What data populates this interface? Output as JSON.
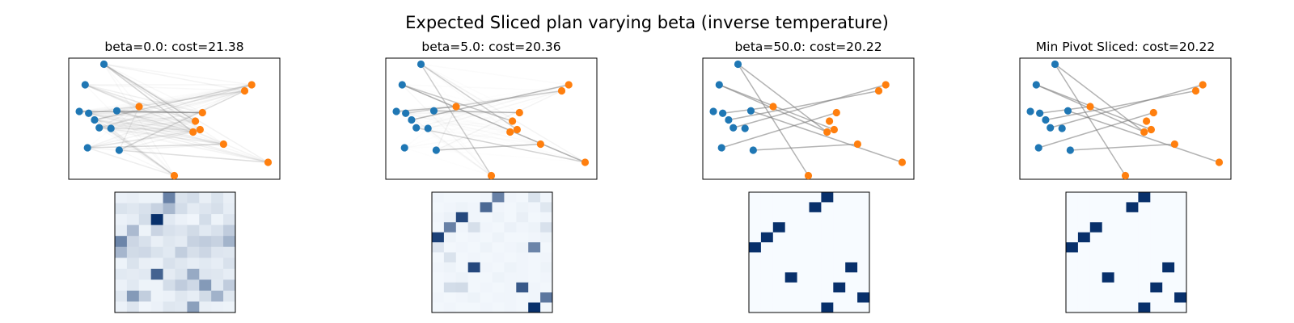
{
  "figure": {
    "title": "Expected Sliced plan varying beta (inverse temperature)"
  },
  "colors": {
    "source": "#1f77b4",
    "target": "#ff7f0e",
    "link": "#808080",
    "matrix_low": "#f7fbff",
    "matrix_high": "#08306b"
  },
  "chart_data": [
    {
      "type": "scatter",
      "title": "beta=0.0: cost=21.38",
      "beta": 0.0,
      "cost": 21.38,
      "source_points": [
        [
          1.5,
          9.5
        ],
        [
          0.7,
          7.8
        ],
        [
          0.45,
          5.6
        ],
        [
          0.85,
          5.45
        ],
        [
          1.1,
          4.9
        ],
        [
          1.3,
          4.25
        ],
        [
          1.8,
          4.2
        ],
        [
          2.05,
          5.65
        ],
        [
          0.8,
          2.6
        ],
        [
          2.15,
          2.4
        ]
      ],
      "target_points": [
        [
          7.8,
          7.8
        ],
        [
          7.5,
          7.3
        ],
        [
          3.0,
          6.0
        ],
        [
          5.7,
          5.5
        ],
        [
          5.4,
          4.8
        ],
        [
          5.6,
          4.1
        ],
        [
          5.3,
          3.9
        ],
        [
          6.6,
          2.9
        ],
        [
          8.5,
          1.4
        ],
        [
          4.5,
          0.3
        ]
      ],
      "plan": [
        [
          0.05,
          0.06,
          0.04,
          0.04,
          0.6,
          0.12,
          0.15,
          0.06,
          0.12,
          0.06
        ],
        [
          0.12,
          0.1,
          0.13,
          0.2,
          0.33,
          0.15,
          0.08,
          0.11,
          0.14,
          0.07
        ],
        [
          0.05,
          0.07,
          0.15,
          1.0,
          0.09,
          0.05,
          0.03,
          0.15,
          0.04,
          0.11
        ],
        [
          0.07,
          0.32,
          0.04,
          0.19,
          0.13,
          0.11,
          0.16,
          0.09,
          0.13,
          0.23
        ],
        [
          0.58,
          0.18,
          0.13,
          0.06,
          0.1,
          0.08,
          0.2,
          0.23,
          0.2,
          0.35
        ],
        [
          0.34,
          0.16,
          0.17,
          0.12,
          0.09,
          0.22,
          0.14,
          0.18,
          0.11,
          0.1
        ],
        [
          0.04,
          0.12,
          0.06,
          0.05,
          0.13,
          0.1,
          0.07,
          0.09,
          0.07,
          0.13
        ],
        [
          0.09,
          0.08,
          0.09,
          0.75,
          0.08,
          0.12,
          0.4,
          0.11,
          0.1,
          0.07
        ],
        [
          0.05,
          0.09,
          0.04,
          0.04,
          0.15,
          0.23,
          0.17,
          0.48,
          0.09,
          0.23
        ],
        [
          0.1,
          0.48,
          0.22,
          0.04,
          0.05,
          0.1,
          0.07,
          0.16,
          0.36,
          0.1
        ],
        [
          0.05,
          0.11,
          0.03,
          0.05,
          0.1,
          0.09,
          0.45,
          0.06,
          0.05,
          0.04
        ]
      ]
    },
    {
      "type": "scatter",
      "title": "beta=5.0: cost=20.36",
      "beta": 5.0,
      "cost": 20.36,
      "source_points": [
        [
          1.5,
          9.5
        ],
        [
          0.7,
          7.8
        ],
        [
          0.45,
          5.6
        ],
        [
          0.85,
          5.45
        ],
        [
          1.1,
          4.9
        ],
        [
          1.3,
          4.25
        ],
        [
          1.8,
          4.2
        ],
        [
          2.05,
          5.65
        ],
        [
          0.8,
          2.6
        ],
        [
          2.15,
          2.4
        ]
      ],
      "target_points": [
        [
          7.8,
          7.8
        ],
        [
          7.5,
          7.3
        ],
        [
          3.0,
          6.0
        ],
        [
          5.7,
          5.5
        ],
        [
          5.4,
          4.8
        ],
        [
          5.6,
          4.1
        ],
        [
          5.3,
          3.9
        ],
        [
          6.6,
          2.9
        ],
        [
          8.5,
          1.4
        ],
        [
          4.5,
          0.3
        ]
      ],
      "plan": [
        [
          0.03,
          0.02,
          0.02,
          0.02,
          0.03,
          0.6,
          0.03,
          0.02,
          0.12,
          0.03
        ],
        [
          0.02,
          0.03,
          0.04,
          0.03,
          0.72,
          0.03,
          0.02,
          0.04,
          0.03,
          0.1
        ],
        [
          0.03,
          0.05,
          0.88,
          0.03,
          0.02,
          0.04,
          0.02,
          0.06,
          0.02,
          0.03
        ],
        [
          0.02,
          0.6,
          0.03,
          0.14,
          0.03,
          0.02,
          0.05,
          0.03,
          0.04,
          0.13
        ],
        [
          0.92,
          0.04,
          0.02,
          0.03,
          0.02,
          0.04,
          0.02,
          0.02,
          0.03,
          0.04
        ],
        [
          0.11,
          0.02,
          0.03,
          0.02,
          0.04,
          0.02,
          0.03,
          0.04,
          0.58,
          0.02
        ],
        [
          0.02,
          0.12,
          0.02,
          0.03,
          0.02,
          0.03,
          0.02,
          0.03,
          0.02,
          0.03
        ],
        [
          0.03,
          0.04,
          0.02,
          0.88,
          0.03,
          0.02,
          0.04,
          0.03,
          0.02,
          0.04
        ],
        [
          0.02,
          0.03,
          0.04,
          0.02,
          0.02,
          0.04,
          0.03,
          0.03,
          0.02,
          0.03
        ],
        [
          0.02,
          0.15,
          0.16,
          0.02,
          0.03,
          0.02,
          0.03,
          0.8,
          0.03,
          0.02
        ],
        [
          0.03,
          0.02,
          0.03,
          0.04,
          0.02,
          0.03,
          0.03,
          0.02,
          0.03,
          0.65
        ],
        [
          0.02,
          0.03,
          0.02,
          0.02,
          0.03,
          0.02,
          0.03,
          0.02,
          1.0,
          0.02
        ]
      ]
    },
    {
      "type": "scatter",
      "title": "beta=50.0: cost=20.22",
      "beta": 50.0,
      "cost": 20.22,
      "source_points": [
        [
          1.5,
          9.5
        ],
        [
          0.7,
          7.8
        ],
        [
          0.45,
          5.6
        ],
        [
          0.85,
          5.45
        ],
        [
          1.1,
          4.9
        ],
        [
          1.3,
          4.25
        ],
        [
          1.8,
          4.2
        ],
        [
          2.05,
          5.65
        ],
        [
          0.8,
          2.6
        ],
        [
          2.15,
          2.4
        ]
      ],
      "target_points": [
        [
          7.8,
          7.8
        ],
        [
          7.5,
          7.3
        ],
        [
          3.0,
          6.0
        ],
        [
          5.7,
          5.5
        ],
        [
          5.4,
          4.8
        ],
        [
          5.6,
          4.1
        ],
        [
          5.3,
          3.9
        ],
        [
          6.6,
          2.9
        ],
        [
          8.5,
          1.4
        ],
        [
          4.5,
          0.3
        ]
      ],
      "plan": [
        [
          0,
          0,
          0,
          0,
          0,
          0,
          1,
          0,
          0,
          0
        ],
        [
          0,
          0,
          0,
          0,
          0,
          1,
          0,
          0,
          0,
          0
        ],
        [
          0,
          0,
          0,
          0,
          0,
          0,
          0,
          0,
          0,
          0
        ],
        [
          0,
          0,
          1,
          0,
          0,
          0,
          0,
          0,
          0,
          0
        ],
        [
          0,
          1,
          0,
          0,
          0,
          0,
          0,
          0,
          0,
          0
        ],
        [
          1,
          0,
          0,
          0,
          0,
          0,
          0,
          0,
          0,
          0
        ],
        [
          0,
          0,
          0,
          0,
          0,
          0,
          0,
          0,
          0,
          0
        ],
        [
          0,
          0,
          0,
          0,
          0,
          0,
          0,
          0,
          1,
          0
        ],
        [
          0,
          0,
          0,
          1,
          0,
          0,
          0,
          0,
          0,
          0
        ],
        [
          0,
          0,
          0,
          0,
          0,
          0,
          0,
          1,
          0,
          0
        ],
        [
          0,
          0,
          0,
          0,
          0,
          0,
          0,
          0,
          0,
          1
        ],
        [
          0,
          0,
          0,
          0,
          0,
          0,
          1,
          0,
          0,
          0
        ]
      ]
    },
    {
      "type": "scatter",
      "title": "Min Pivot Sliced: cost=20.22",
      "cost": 20.22,
      "source_points": [
        [
          1.5,
          9.5
        ],
        [
          0.7,
          7.8
        ],
        [
          0.45,
          5.6
        ],
        [
          0.85,
          5.45
        ],
        [
          1.1,
          4.9
        ],
        [
          1.3,
          4.25
        ],
        [
          1.8,
          4.2
        ],
        [
          2.05,
          5.65
        ],
        [
          0.8,
          2.6
        ],
        [
          2.15,
          2.4
        ]
      ],
      "target_points": [
        [
          7.8,
          7.8
        ],
        [
          7.5,
          7.3
        ],
        [
          3.0,
          6.0
        ],
        [
          5.7,
          5.5
        ],
        [
          5.4,
          4.8
        ],
        [
          5.6,
          4.1
        ],
        [
          5.3,
          3.9
        ],
        [
          6.6,
          2.9
        ],
        [
          8.5,
          1.4
        ],
        [
          4.5,
          0.3
        ]
      ],
      "plan": [
        [
          0,
          0,
          0,
          0,
          0,
          0,
          1,
          0,
          0,
          0
        ],
        [
          0,
          0,
          0,
          0,
          0,
          1,
          0,
          0,
          0,
          0
        ],
        [
          0,
          0,
          0,
          0,
          0,
          0,
          0,
          0,
          0,
          0
        ],
        [
          0,
          0,
          1,
          0,
          0,
          0,
          0,
          0,
          0,
          0
        ],
        [
          0,
          1,
          0,
          0,
          0,
          0,
          0,
          0,
          0,
          0
        ],
        [
          1,
          0,
          0,
          0,
          0,
          0,
          0,
          0,
          0,
          0
        ],
        [
          0,
          0,
          0,
          0,
          0,
          0,
          0,
          0,
          0,
          0
        ],
        [
          0,
          0,
          0,
          0,
          0,
          0,
          0,
          0,
          1,
          0
        ],
        [
          0,
          0,
          0,
          1,
          0,
          0,
          0,
          0,
          0,
          0
        ],
        [
          0,
          0,
          0,
          0,
          0,
          0,
          0,
          1,
          0,
          0
        ],
        [
          0,
          0,
          0,
          0,
          0,
          0,
          0,
          0,
          0,
          1
        ],
        [
          0,
          0,
          0,
          0,
          0,
          0,
          1,
          0,
          0,
          0
        ]
      ]
    }
  ]
}
